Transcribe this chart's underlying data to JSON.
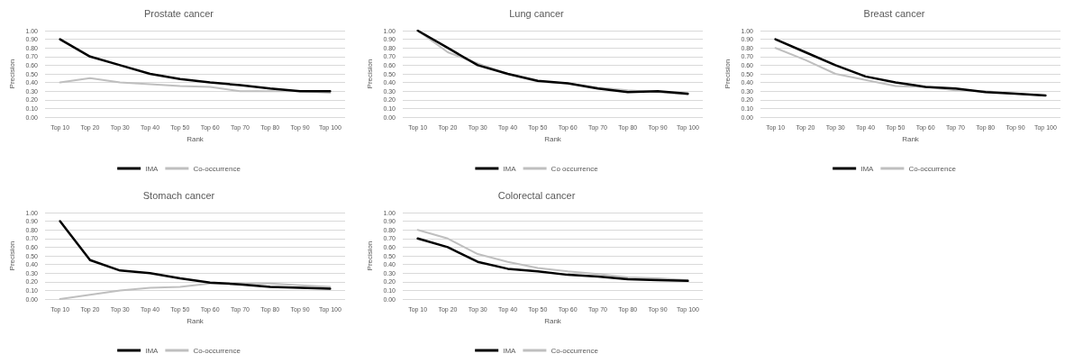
{
  "chart_data": [
    {
      "type": "line",
      "title": "Prostate cancer",
      "xlabel": "Rank",
      "ylabel": "Precision",
      "categories": [
        "Top 10",
        "Top 20",
        "Top 30",
        "Top 40",
        "Top 50",
        "Top 60",
        "Top 70",
        "Top 80",
        "Top 90",
        "Top 100"
      ],
      "series": [
        {
          "name": "IMA",
          "color": "#000000",
          "values": [
            0.9,
            0.7,
            0.6,
            0.5,
            0.44,
            0.4,
            0.37,
            0.33,
            0.3,
            0.3
          ]
        },
        {
          "name": "Co-occurrence",
          "color": "#bfbfbf",
          "values": [
            0.4,
            0.45,
            0.4,
            0.38,
            0.36,
            0.35,
            0.3,
            0.3,
            0.3,
            0.28
          ]
        }
      ],
      "ylim": [
        0,
        1
      ],
      "yticks": [
        {
          "value": 0,
          "label": "0.00"
        },
        {
          "value": 0.1,
          "label": "0.10"
        },
        {
          "value": 0.2,
          "label": "0.20"
        },
        {
          "value": 0.3,
          "label": "0.30"
        },
        {
          "value": 0.4,
          "label": "0.40"
        },
        {
          "value": 0.5,
          "label": "0.50"
        },
        {
          "value": 0.6,
          "label": "0.60"
        },
        {
          "value": 0.7,
          "label": "0.70"
        },
        {
          "value": 0.8,
          "label": "0.80"
        },
        {
          "value": 0.9,
          "label": "0.90"
        },
        {
          "value": 1,
          "label": "1.00"
        }
      ],
      "grid": "y",
      "legend": "bottom",
      "marker": "none"
    },
    {
      "type": "line",
      "title": "Lung cancer",
      "xlabel": "Rank",
      "ylabel": "Precision",
      "categories": [
        "Top 10",
        "Top 20",
        "Top 30",
        "Top 40",
        "Top 50",
        "Top 60",
        "Top 70",
        "Top 80",
        "Top 90",
        "Top 100"
      ],
      "series": [
        {
          "name": "IMA",
          "color": "#000000",
          "values": [
            1,
            0.8,
            0.6,
            0.5,
            0.42,
            0.39,
            0.33,
            0.29,
            0.3,
            0.27
          ]
        },
        {
          "name": "Co occurrence",
          "color": "#bfbfbf",
          "values": [
            1,
            0.75,
            0.62,
            0.5,
            0.41,
            0.39,
            0.34,
            0.31,
            0.29,
            0.26
          ]
        }
      ],
      "ylim": [
        0,
        1
      ],
      "yticks": [
        {
          "value": 0,
          "label": "0.00"
        },
        {
          "value": 0.1,
          "label": "0.10"
        },
        {
          "value": 0.2,
          "label": "0.20"
        },
        {
          "value": 0.3,
          "label": "0.30"
        },
        {
          "value": 0.4,
          "label": "0.40"
        },
        {
          "value": 0.5,
          "label": "0.50"
        },
        {
          "value": 0.6,
          "label": "0.60"
        },
        {
          "value": 0.7,
          "label": "0.70"
        },
        {
          "value": 0.8,
          "label": "0.80"
        },
        {
          "value": 0.9,
          "label": "0.90"
        },
        {
          "value": 1,
          "label": "1.00"
        }
      ],
      "grid": "y",
      "legend": "bottom",
      "marker": "none"
    },
    {
      "type": "line",
      "title": "Breast cancer",
      "xlabel": "Rank",
      "ylabel": "Precision",
      "categories": [
        "Top 10",
        "Top 20",
        "Top 30",
        "Top 40",
        "Top 50",
        "Top 60",
        "Top 70",
        "Top 80",
        "Top 90",
        "Top 100"
      ],
      "series": [
        {
          "name": "IMA",
          "color": "#000000",
          "values": [
            0.9,
            0.75,
            0.6,
            0.47,
            0.4,
            0.35,
            0.33,
            0.29,
            0.27,
            0.25
          ]
        },
        {
          "name": "Co-occurrence",
          "color": "#bfbfbf",
          "values": [
            0.8,
            0.66,
            0.5,
            0.43,
            0.36,
            0.35,
            0.31,
            0.3,
            0.27,
            0.25
          ]
        }
      ],
      "ylim": [
        0,
        1
      ],
      "yticks": [
        {
          "value": 0,
          "label": "0.00"
        },
        {
          "value": 0.1,
          "label": "0.10"
        },
        {
          "value": 0.2,
          "label": "0.20"
        },
        {
          "value": 0.3,
          "label": "0.30"
        },
        {
          "value": 0.4,
          "label": "0.40"
        },
        {
          "value": 0.5,
          "label": "0.50"
        },
        {
          "value": 0.6,
          "label": "0.60"
        },
        {
          "value": 0.7,
          "label": "0.70"
        },
        {
          "value": 0.8,
          "label": "0.80"
        },
        {
          "value": 0.9,
          "label": "0.90"
        },
        {
          "value": 1,
          "label": "1.00"
        }
      ],
      "grid": "y",
      "legend": "bottom",
      "marker": "none"
    },
    {
      "type": "line",
      "title": "Stomach cancer",
      "xlabel": "Rank",
      "ylabel": "Precision",
      "categories": [
        "Top 10",
        "Top 20",
        "Top 30",
        "Top 40",
        "Top 50",
        "Top 60",
        "Top 70",
        "Top 80",
        "Top 90",
        "Top 100"
      ],
      "series": [
        {
          "name": "IMA",
          "color": "#000000",
          "values": [
            0.9,
            0.45,
            0.33,
            0.3,
            0.24,
            0.19,
            0.17,
            0.14,
            0.13,
            0.12
          ]
        },
        {
          "name": "Co-occurrence",
          "color": "#bfbfbf",
          "values": [
            0,
            0.05,
            0.1,
            0.13,
            0.14,
            0.18,
            0.18,
            0.18,
            0.16,
            0.14
          ]
        }
      ],
      "ylim": [
        0,
        1
      ],
      "yticks": [
        {
          "value": 0,
          "label": "0.00"
        },
        {
          "value": 0.1,
          "label": "0.10"
        },
        {
          "value": 0.2,
          "label": "0.20"
        },
        {
          "value": 0.3,
          "label": "0.30"
        },
        {
          "value": 0.4,
          "label": "0.40"
        },
        {
          "value": 0.5,
          "label": "0.50"
        },
        {
          "value": 0.6,
          "label": "0.60"
        },
        {
          "value": 0.7,
          "label": "0.70"
        },
        {
          "value": 0.8,
          "label": "0.80"
        },
        {
          "value": 0.9,
          "label": "0.90"
        },
        {
          "value": 1,
          "label": "1.00"
        }
      ],
      "grid": "y",
      "legend": "bottom",
      "marker": "none"
    },
    {
      "type": "line",
      "title": "Colorectal cancer",
      "xlabel": "Rank",
      "ylabel": "Precision",
      "categories": [
        "Top 10",
        "Top 20",
        "Top 30",
        "Top 40",
        "Top 50",
        "Top 60",
        "Top 70",
        "Top 80",
        "Top 90",
        "Top 100"
      ],
      "series": [
        {
          "name": "IMA",
          "color": "#000000",
          "values": [
            0.7,
            0.6,
            0.43,
            0.35,
            0.32,
            0.28,
            0.26,
            0.23,
            0.22,
            0.21
          ]
        },
        {
          "name": "Co-occurrence",
          "color": "#bfbfbf",
          "values": [
            0.8,
            0.7,
            0.52,
            0.43,
            0.36,
            0.32,
            0.29,
            0.25,
            0.24,
            0.22
          ]
        }
      ],
      "ylim": [
        0,
        1
      ],
      "yticks": [
        {
          "value": 0,
          "label": "0.00"
        },
        {
          "value": 0.1,
          "label": "0.10"
        },
        {
          "value": 0.2,
          "label": "0.20"
        },
        {
          "value": 0.3,
          "label": "0.30"
        },
        {
          "value": 0.4,
          "label": "0.40"
        },
        {
          "value": 0.5,
          "label": "0.50"
        },
        {
          "value": 0.6,
          "label": "0.60"
        },
        {
          "value": 0.7,
          "label": "0.70"
        },
        {
          "value": 0.8,
          "label": "0.80"
        },
        {
          "value": 0.9,
          "label": "0.90"
        },
        {
          "value": 1,
          "label": "1.00"
        }
      ],
      "grid": "y",
      "legend": "bottom",
      "marker": "none"
    }
  ]
}
